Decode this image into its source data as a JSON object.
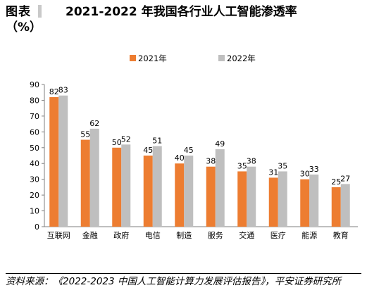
{
  "header": {
    "figure_label_line1": "图表",
    "figure_label_line2": "（%）",
    "title": "2021-2022 年我国各行业人工智能渗透率"
  },
  "chart_data": {
    "type": "bar",
    "title": "",
    "xlabel": "",
    "ylabel": "",
    "categories": [
      "互联网",
      "金融",
      "政府",
      "电信",
      "制造",
      "服务",
      "交通",
      "医疗",
      "能源",
      "教育"
    ],
    "series": [
      {
        "name": "2021年",
        "color": "#ED7D31",
        "values": [
          82,
          55,
          50,
          45,
          40,
          38,
          35,
          31,
          30,
          25
        ]
      },
      {
        "name": "2022年",
        "color": "#BFBFBF",
        "values": [
          83,
          62,
          52,
          51,
          45,
          49,
          38,
          35,
          33,
          27
        ]
      }
    ],
    "ylim": [
      0,
      90
    ],
    "yticks": [
      0,
      10,
      20,
      30,
      40,
      50,
      60,
      70,
      80,
      90
    ],
    "grid": false,
    "legend_position": "top"
  },
  "source": {
    "text": "资料来源：《2022-2023 中国人工智能计算力发展评估报告》，平安证券研究所"
  }
}
